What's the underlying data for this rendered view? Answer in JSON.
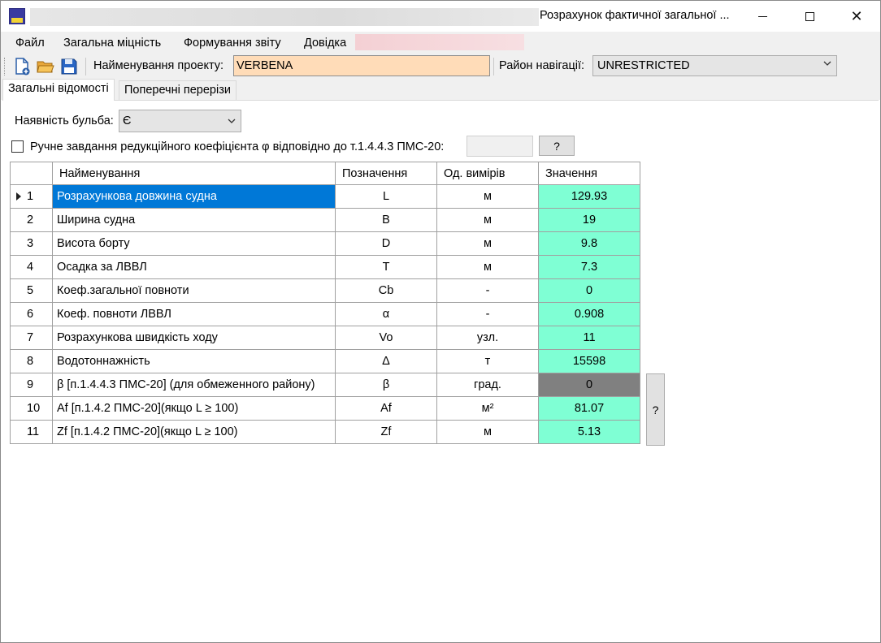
{
  "window": {
    "title": "Розрахунок фактичної загальної ...",
    "minimize": "minimize",
    "maximize": "maximize",
    "close": "✕"
  },
  "menu": {
    "items": [
      "Файл",
      "Загальна міцність",
      "Формування звіту",
      "Довідка"
    ]
  },
  "toolbar": {
    "icons": [
      "new-document-icon",
      "open-folder-icon",
      "save-disk-icon"
    ],
    "project_label": "Найменування проекту:",
    "project_value": "VERBENA",
    "nav_label": "Район навігації:",
    "nav_value": "UNRESTRICTED"
  },
  "tabs": [
    {
      "label": "Загальні відомості",
      "active": true
    },
    {
      "label": "Поперечні перерізи",
      "active": false
    }
  ],
  "bulb": {
    "label": "Наявність бульба:",
    "value": "Є"
  },
  "manual_phi": {
    "label": "Ручне завдання редукційного коефіцієнта φ відповідно до т.1.4.4.3 ПМС-20:",
    "checked": false,
    "value": "",
    "help_label": "?"
  },
  "grid": {
    "headers": [
      "",
      "Найменування",
      "Позначення",
      "Од. вимірів",
      "Значення"
    ],
    "rows": [
      {
        "idx": "1",
        "name": "Розрахункова довжина судна",
        "sym": "L",
        "unit": "м",
        "value": "129.93",
        "selected": true
      },
      {
        "idx": "2",
        "name": "Ширина судна",
        "sym": "B",
        "unit": "м",
        "value": "19"
      },
      {
        "idx": "3",
        "name": "Висота борту",
        "sym": "D",
        "unit": "м",
        "value": "9.8"
      },
      {
        "idx": "4",
        "name": "Осадка за ЛВВЛ",
        "sym": "T",
        "unit": "м",
        "value": "7.3"
      },
      {
        "idx": "5",
        "name": "Коеф.загальної повноти",
        "sym": "Cb",
        "unit": "-",
        "value": "0"
      },
      {
        "idx": "6",
        "name": "Коеф. повноти ЛВВЛ",
        "sym": "α",
        "unit": "-",
        "value": "0.908"
      },
      {
        "idx": "7",
        "name": "Розрахункова швидкість ходу",
        "sym": "Vo",
        "unit": "узл.",
        "value": "11"
      },
      {
        "idx": "8",
        "name": "Водотоннажність",
        "sym": "Δ",
        "unit": "т",
        "value": "15598"
      },
      {
        "idx": "9",
        "name": "β  [п.1.4.4.3 ПМС-20] (для обмеженного району)",
        "sym": "β",
        "unit": "град.",
        "value": "0",
        "disabled": true
      },
      {
        "idx": "10",
        "name": "Af [п.1.4.2 ПМС-20](якщо L ≥ 100)",
        "sym": "Af",
        "unit": "м²",
        "value": "81.07"
      },
      {
        "idx": "11",
        "name": "Zf [п.1.4.2 ПМС-20](якщо L ≥ 100)",
        "sym": "Zf",
        "unit": "м",
        "value": "5.13"
      }
    ],
    "side_help_label": "?"
  },
  "colors": {
    "value_cell": "#7fffd4",
    "disabled_cell": "#808080",
    "selection": "#0078d7",
    "project_input_bg": "#ffdcb8"
  }
}
